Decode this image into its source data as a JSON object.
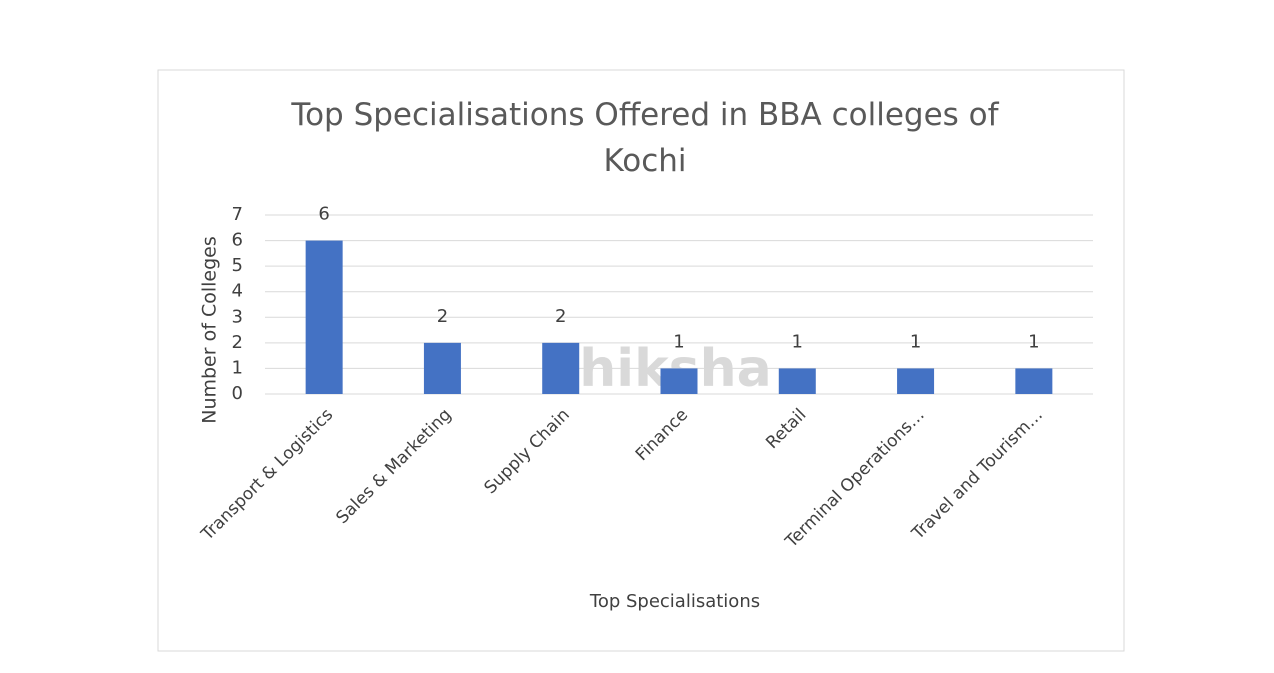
{
  "chart_data": {
    "type": "bar",
    "title": "Top Specialisations Offered in BBA colleges of Kochi",
    "x_label": "Top Specialisations",
    "y_label": "Number of Colleges",
    "watermark": "shiksha",
    "categories": [
      "Transport & Logistics",
      "Sales & Marketing",
      "Supply Chain",
      "Finance",
      "Retail",
      "Terminal Operations…",
      "Travel and Tourism…"
    ],
    "values": [
      6,
      2,
      2,
      1,
      1,
      1,
      1
    ],
    "color": "#4472c4",
    "ylim": [
      0,
      7
    ],
    "yticks": [
      0,
      1,
      2,
      3,
      4,
      5,
      6,
      7
    ],
    "grid": true
  }
}
